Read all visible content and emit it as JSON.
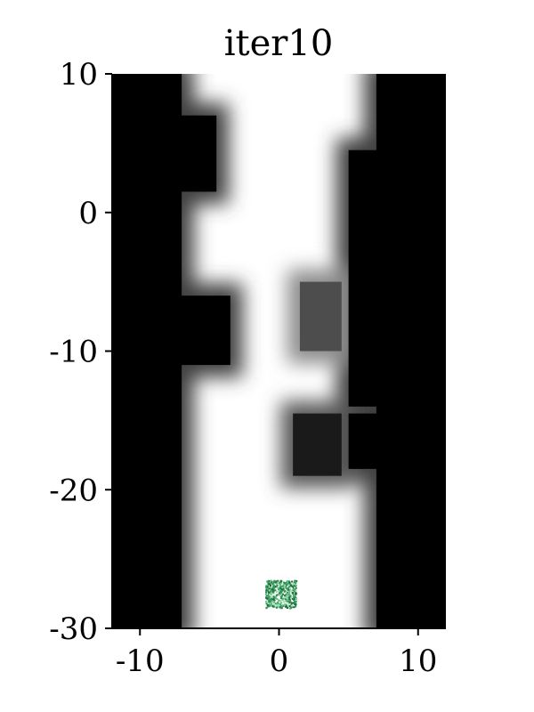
{
  "chart_data": {
    "type": "heatmap",
    "title": "iter10",
    "xlabel": "",
    "ylabel": "",
    "xlim": [
      -12,
      12
    ],
    "ylim": [
      -30,
      10
    ],
    "x_ticks": [
      -10,
      0,
      10
    ],
    "x_tick_labels": [
      "-10",
      "0",
      "10"
    ],
    "y_ticks": [
      10,
      0,
      -10,
      -20,
      -30
    ],
    "y_tick_labels": [
      "10",
      "0",
      "-10",
      "-20",
      "-30"
    ],
    "grid": false,
    "colormap": "grayscale (black = occupied, white = free)",
    "regions": [
      {
        "type": "wall",
        "x0": -12,
        "x1": -7,
        "y0": -30,
        "y1": 10
      },
      {
        "type": "wall",
        "x0": 7,
        "x1": 12,
        "y0": -30,
        "y1": 10
      },
      {
        "type": "block",
        "x0": -12,
        "x1": -4.5,
        "y0": 1.5,
        "y1": 7
      },
      {
        "type": "block",
        "x0": -12,
        "x1": -3.5,
        "y0": -11,
        "y1": -6
      },
      {
        "type": "block",
        "x0": 5,
        "x1": 12,
        "y0": -18.5,
        "y1": -14.5
      },
      {
        "type": "block",
        "x0": 5,
        "x1": 12,
        "y0": -14,
        "y1": 4.5
      },
      {
        "type": "obstacle",
        "x0": 1,
        "x1": 4.5,
        "y0": -19,
        "y1": -14.5,
        "level": 0.1
      },
      {
        "type": "obstacle",
        "x0": 1.5,
        "x1": 4.5,
        "y0": -10,
        "y1": -5,
        "level": 0.3
      }
    ],
    "samples": {
      "x_range": [
        -1,
        1.2
      ],
      "y_range": [
        -28.5,
        -26.5
      ],
      "colors": [
        "#1a6e3a",
        "#2e8b57",
        "#5fbf7f",
        "#a6dcb2",
        "#3c9a5c"
      ]
    }
  }
}
